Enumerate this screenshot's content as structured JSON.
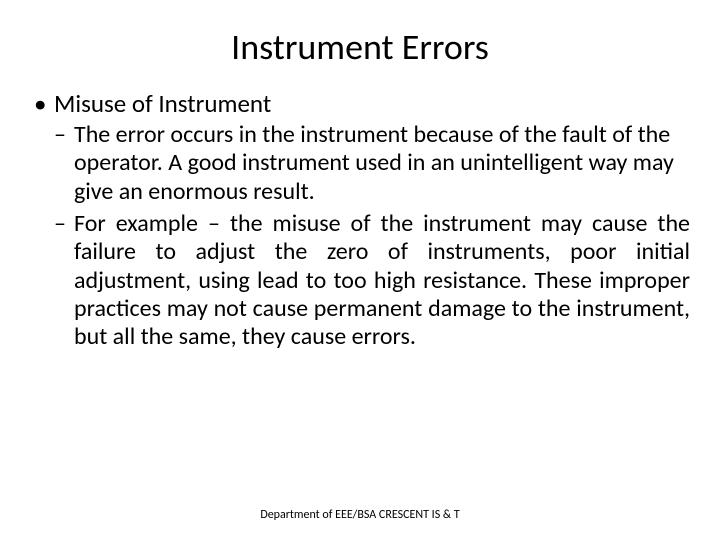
{
  "title": "Instrument Errors",
  "bullet": {
    "heading": "Misuse of Instrument",
    "sub1": "The error occurs in the instrument because of the fault of the operator. A good instrument used in an unintelligent way may give an enormous result.",
    "sub2": "For example – the misuse of the instrument may cause the failure to adjust the zero of instruments, poor initial adjustment, using lead to too high resistance. These improper practices may not cause permanent damage to the instrument, but all the same, they cause errors."
  },
  "footer": "Department of EEE/BSA CRESCENT IS & T",
  "colors": {
    "background": "#ffffff",
    "text": "#000000"
  },
  "fonts": {
    "title_size": 36,
    "body_size": 25,
    "sub_size": 24,
    "footer_size": 12
  }
}
